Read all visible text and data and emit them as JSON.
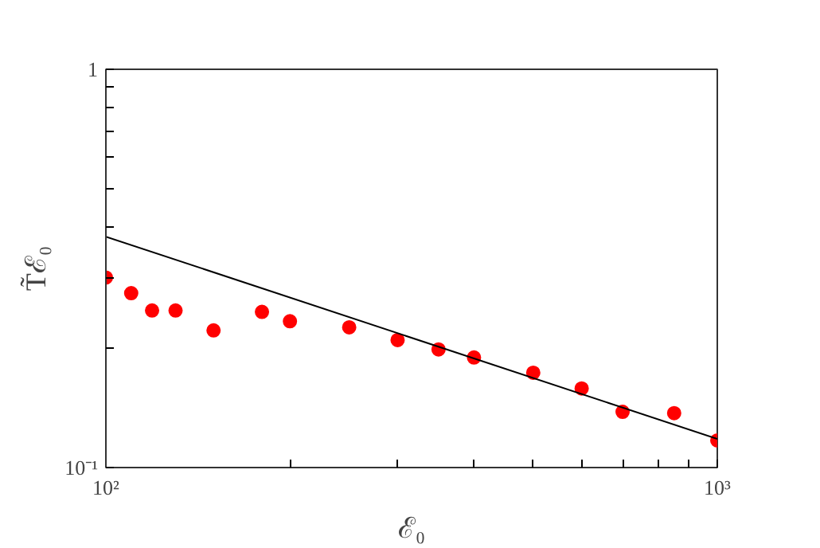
{
  "chart_data": {
    "type": "scatter",
    "xlabel": "ℰ₀",
    "ylabel": "T̃ℰ₀",
    "log": "xy",
    "grid": false,
    "marker": "circle",
    "xlim": [
      100,
      1000
    ],
    "ylim": [
      0.1,
      1
    ],
    "xticks": [
      {
        "value": 100,
        "label": "10²"
      },
      {
        "value": 200,
        "label": null
      },
      {
        "value": 300,
        "label": null
      },
      {
        "value": 400,
        "label": null
      },
      {
        "value": 500,
        "label": null
      },
      {
        "value": 600,
        "label": null
      },
      {
        "value": 700,
        "label": null
      },
      {
        "value": 800,
        "label": null
      },
      {
        "value": 900,
        "label": null
      },
      {
        "value": 1000,
        "label": "10³"
      }
    ],
    "yticks": [
      {
        "value": 0.1,
        "label": "10⁻¹"
      },
      {
        "value": 0.2,
        "label": null
      },
      {
        "value": 0.3,
        "label": null
      },
      {
        "value": 0.4,
        "label": null
      },
      {
        "value": 0.5,
        "label": null
      },
      {
        "value": 0.6,
        "label": null
      },
      {
        "value": 0.7,
        "label": null
      },
      {
        "value": 0.8,
        "label": null
      },
      {
        "value": 0.9,
        "label": null
      },
      {
        "value": 1,
        "label": "1"
      }
    ],
    "series": [
      {
        "color": "#ff0000",
        "x": [
          100,
          110,
          119,
          130,
          150,
          180,
          200,
          250,
          300,
          350,
          400,
          500,
          600,
          700,
          850,
          1000
        ],
        "values": [
          0.3,
          0.274,
          0.248,
          0.248,
          0.221,
          0.246,
          0.233,
          0.225,
          0.209,
          0.198,
          0.189,
          0.173,
          0.158,
          0.138,
          0.137,
          0.117
        ]
      },
      {
        "type": "line",
        "color": "#000000",
        "marker": "none",
        "line_style": "solid",
        "x": [
          100,
          1000
        ],
        "values": [
          0.38,
          0.118
        ]
      }
    ]
  }
}
